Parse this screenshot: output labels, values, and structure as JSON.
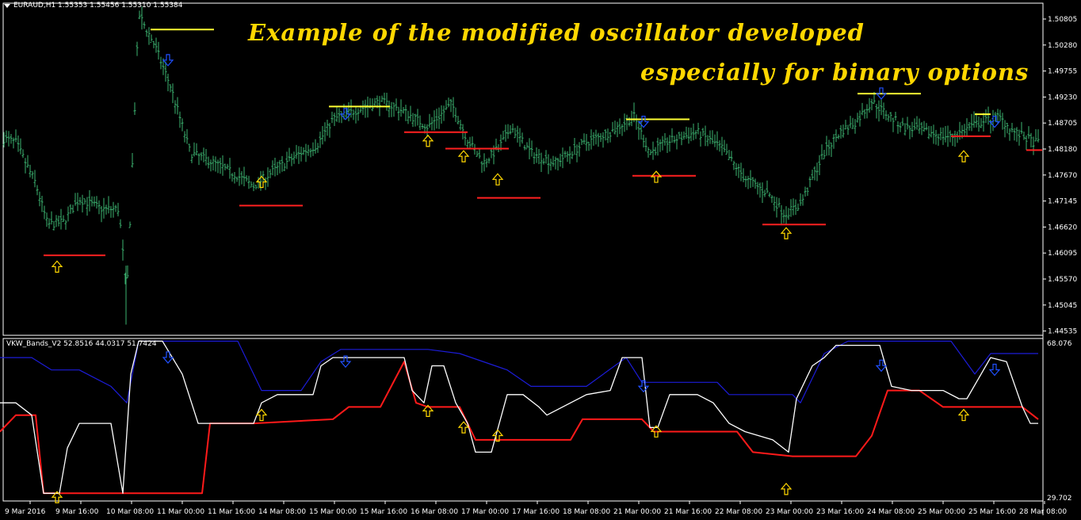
{
  "main_panel": {
    "header": "EURAUD,H1  1.55353 1.55456 1.55310 1.55384",
    "annotation_line1": "Example of the modified oscillator developed",
    "annotation_line2": "especially for binary options",
    "price_labels": [
      "1.50805",
      "1.50280",
      "1.49755",
      "1.49230",
      "1.48705",
      "1.48180",
      "1.47670",
      "1.47145",
      "1.46620",
      "1.46095",
      "1.45570",
      "1.45045",
      "1.44535"
    ]
  },
  "indicator_panel": {
    "header": "VKW_Bands_V2 52.8516 44.0317 51.7424",
    "scale_max": "68.076",
    "scale_min": "29.702"
  },
  "time_axis": [
    "9 Mar 2016",
    "9 Mar 16:00",
    "10 Mar 08:00",
    "11 Mar 00:00",
    "11 Mar 16:00",
    "14 Mar 08:00",
    "15 Mar 00:00",
    "15 Mar 16:00",
    "16 Mar 08:00",
    "17 Mar 00:00",
    "17 Mar 16:00",
    "18 Mar 08:00",
    "21 Mar 00:00",
    "21 Mar 16:00",
    "22 Mar 08:00",
    "23 Mar 00:00",
    "23 Mar 16:00",
    "24 Mar 08:00",
    "25 Mar 00:00",
    "25 Mar 16:00",
    "28 Mar 08:00"
  ],
  "colors": {
    "bars": "#3cb371",
    "upper_band": "#1c1cd8",
    "lower_band": "#ff1a1a",
    "oscillator": "#ffffff",
    "level_high": "#ffff33",
    "level_low": "#ff2020",
    "arrow_up": "#ffd700",
    "arrow_down": "#2050ff",
    "annotation": "#ffd700"
  },
  "chart_data": {
    "type": "line",
    "symbol": "EURAUD,H1",
    "price_range": [
      1.44535,
      1.50805
    ],
    "close_path": [
      [
        0,
        1.483
      ],
      [
        20,
        1.482
      ],
      [
        45,
        1.474
      ],
      [
        60,
        1.466
      ],
      [
        80,
        1.4665
      ],
      [
        100,
        1.471
      ],
      [
        130,
        1.469
      ],
      [
        150,
        1.469
      ],
      [
        160,
        1.452
      ],
      [
        175,
        1.507
      ],
      [
        195,
        1.501
      ],
      [
        215,
        1.493
      ],
      [
        240,
        1.48
      ],
      [
        270,
        1.478
      ],
      [
        300,
        1.4755
      ],
      [
        320,
        1.4735
      ],
      [
        350,
        1.477
      ],
      [
        380,
        1.48
      ],
      [
        400,
        1.4815
      ],
      [
        420,
        1.4865
      ],
      [
        445,
        1.488
      ],
      [
        480,
        1.49
      ],
      [
        510,
        1.488
      ],
      [
        540,
        1.485
      ],
      [
        570,
        1.4895
      ],
      [
        590,
        1.4825
      ],
      [
        610,
        1.478
      ],
      [
        630,
        1.481
      ],
      [
        645,
        1.485
      ],
      [
        670,
        1.48
      ],
      [
        700,
        1.478
      ],
      [
        740,
        1.482
      ],
      [
        770,
        1.484
      ],
      [
        800,
        1.487
      ],
      [
        820,
        1.48
      ],
      [
        840,
        1.482
      ],
      [
        880,
        1.484
      ],
      [
        910,
        1.481
      ],
      [
        940,
        1.475
      ],
      [
        970,
        1.472
      ],
      [
        990,
        1.468
      ],
      [
        1010,
        1.47
      ],
      [
        1040,
        1.48
      ],
      [
        1060,
        1.484
      ],
      [
        1080,
        1.486
      ],
      [
        1100,
        1.49
      ],
      [
        1115,
        1.488
      ],
      [
        1140,
        1.485
      ],
      [
        1170,
        1.484
      ],
      [
        1200,
        1.483
      ],
      [
        1230,
        1.4855
      ],
      [
        1260,
        1.487
      ],
      [
        1280,
        1.484
      ],
      [
        1305,
        1.482
      ]
    ],
    "upper_band": [
      [
        0,
        64
      ],
      [
        40,
        64
      ],
      [
        65,
        61
      ],
      [
        100,
        61
      ],
      [
        140,
        57
      ],
      [
        160,
        53
      ],
      [
        175,
        68
      ],
      [
        300,
        68
      ],
      [
        330,
        56
      ],
      [
        350,
        56
      ],
      [
        380,
        56
      ],
      [
        405,
        63
      ],
      [
        430,
        66
      ],
      [
        540,
        66
      ],
      [
        580,
        65
      ],
      [
        640,
        61
      ],
      [
        670,
        57
      ],
      [
        740,
        57
      ],
      [
        790,
        64
      ],
      [
        810,
        58
      ],
      [
        830,
        58
      ],
      [
        905,
        58
      ],
      [
        920,
        55
      ],
      [
        1000,
        55
      ],
      [
        1010,
        53
      ],
      [
        1040,
        65
      ],
      [
        1070,
        68
      ],
      [
        1200,
        68
      ],
      [
        1230,
        60
      ],
      [
        1250,
        65
      ],
      [
        1310,
        65
      ]
    ],
    "lower_band": [
      [
        0,
        46
      ],
      [
        20,
        50
      ],
      [
        45,
        50
      ],
      [
        55,
        31
      ],
      [
        90,
        31
      ],
      [
        255,
        31
      ],
      [
        265,
        48
      ],
      [
        320,
        48
      ],
      [
        420,
        49
      ],
      [
        440,
        52
      ],
      [
        480,
        52
      ],
      [
        510,
        63
      ],
      [
        525,
        53
      ],
      [
        540,
        52
      ],
      [
        580,
        52
      ],
      [
        600,
        44
      ],
      [
        720,
        44
      ],
      [
        735,
        49
      ],
      [
        810,
        49
      ],
      [
        825,
        46
      ],
      [
        930,
        46
      ],
      [
        950,
        41
      ],
      [
        1000,
        40
      ],
      [
        1080,
        40
      ],
      [
        1100,
        45
      ],
      [
        1120,
        56
      ],
      [
        1140,
        56
      ],
      [
        1160,
        56
      ],
      [
        1190,
        52
      ],
      [
        1290,
        52
      ],
      [
        1310,
        49
      ]
    ],
    "oscillator": [
      [
        0,
        53
      ],
      [
        20,
        53
      ],
      [
        40,
        50
      ],
      [
        55,
        31
      ],
      [
        75,
        31
      ],
      [
        85,
        42
      ],
      [
        100,
        48
      ],
      [
        140,
        48
      ],
      [
        155,
        31
      ],
      [
        165,
        60
      ],
      [
        175,
        68
      ],
      [
        205,
        68
      ],
      [
        230,
        60
      ],
      [
        250,
        48
      ],
      [
        265,
        48
      ],
      [
        320,
        48
      ],
      [
        330,
        53
      ],
      [
        350,
        55
      ],
      [
        395,
        55
      ],
      [
        405,
        62
      ],
      [
        420,
        64
      ],
      [
        440,
        64
      ],
      [
        510,
        64
      ],
      [
        520,
        56
      ],
      [
        535,
        53
      ],
      [
        545,
        62
      ],
      [
        560,
        62
      ],
      [
        575,
        53
      ],
      [
        590,
        48
      ],
      [
        600,
        41
      ],
      [
        620,
        41
      ],
      [
        640,
        55
      ],
      [
        660,
        55
      ],
      [
        680,
        52
      ],
      [
        690,
        50
      ],
      [
        740,
        55
      ],
      [
        770,
        56
      ],
      [
        785,
        64
      ],
      [
        810,
        64
      ],
      [
        820,
        47
      ],
      [
        830,
        47
      ],
      [
        845,
        55
      ],
      [
        880,
        55
      ],
      [
        900,
        53
      ],
      [
        920,
        48
      ],
      [
        940,
        46
      ],
      [
        975,
        44
      ],
      [
        995,
        41
      ],
      [
        1005,
        54
      ],
      [
        1025,
        62
      ],
      [
        1040,
        64
      ],
      [
        1055,
        67
      ],
      [
        1110,
        67
      ],
      [
        1125,
        57
      ],
      [
        1150,
        56
      ],
      [
        1190,
        56
      ],
      [
        1210,
        54
      ],
      [
        1220,
        54
      ],
      [
        1235,
        59
      ],
      [
        1250,
        64
      ],
      [
        1270,
        63
      ],
      [
        1290,
        52
      ],
      [
        1300,
        48
      ],
      [
        1310,
        48
      ]
    ],
    "high_levels": [
      [
        190,
        270,
        1.504
      ],
      [
        415,
        492,
        1.489
      ],
      [
        790,
        870,
        1.4865
      ],
      [
        1082,
        1162,
        1.4915
      ],
      [
        1230,
        1250,
        1.4875
      ]
    ],
    "low_levels": [
      [
        55,
        133,
        1.46
      ],
      [
        302,
        382,
        1.4697
      ],
      [
        510,
        590,
        1.484
      ],
      [
        562,
        642,
        1.4808
      ],
      [
        602,
        682,
        1.4712
      ],
      [
        798,
        878,
        1.4755
      ],
      [
        962,
        1042,
        1.466
      ],
      [
        1200,
        1250,
        1.4832
      ],
      [
        1295,
        1315,
        1.4805
      ]
    ],
    "up_arrows_main": [
      [
        72,
        1.4595
      ],
      [
        330,
        1.476
      ],
      [
        540,
        1.484
      ],
      [
        585,
        1.481
      ],
      [
        628,
        1.4765
      ],
      [
        828,
        1.477
      ],
      [
        992,
        1.466
      ],
      [
        1216,
        1.481
      ]
    ],
    "down_arrows_main": [
      [
        212,
        1.4985
      ],
      [
        436,
        1.488
      ],
      [
        812,
        1.4865
      ],
      [
        1112,
        1.492
      ],
      [
        1255,
        1.4865
      ]
    ],
    "up_arrows_osc": [
      [
        72,
        31
      ],
      [
        330,
        51
      ],
      [
        540,
        52
      ],
      [
        585,
        48
      ],
      [
        628,
        46
      ],
      [
        828,
        47
      ],
      [
        992,
        33
      ],
      [
        1216,
        51
      ]
    ],
    "down_arrows_osc": [
      [
        212,
        65
      ],
      [
        436,
        64
      ],
      [
        812,
        58
      ],
      [
        1112,
        63
      ],
      [
        1255,
        62
      ]
    ]
  }
}
